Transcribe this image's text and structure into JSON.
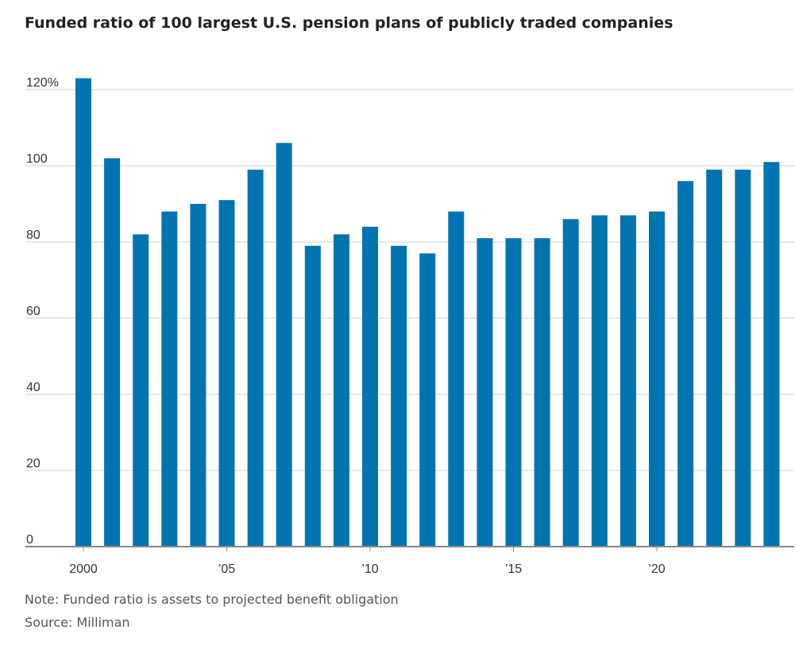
{
  "title": "Funded ratio of 100 largest U.S. pension plans of publicly traded companies",
  "note": "Note: Funded ratio is assets to projected benefit obligation",
  "source": "Source: Milliman",
  "colors": {
    "bar": "#0074B0",
    "grid": "#E8E8E8",
    "axis": "#888888"
  },
  "chart_data": {
    "type": "bar",
    "x": [
      2000,
      2001,
      2002,
      2003,
      2004,
      2005,
      2006,
      2007,
      2008,
      2009,
      2010,
      2011,
      2012,
      2013,
      2014,
      2015,
      2016,
      2017,
      2018,
      2019,
      2020,
      2021,
      2022,
      2023,
      2024
    ],
    "values": [
      123,
      102,
      82,
      88,
      90,
      91,
      99,
      106,
      79,
      82,
      84,
      79,
      77,
      88,
      81,
      81,
      81,
      86,
      87,
      87,
      88,
      96,
      99,
      99,
      101
    ],
    "ylim": [
      0,
      125
    ],
    "y_ticks": [
      {
        "value": 0,
        "label": "0"
      },
      {
        "value": 20,
        "label": "20"
      },
      {
        "value": 40,
        "label": "40"
      },
      {
        "value": 60,
        "label": "60"
      },
      {
        "value": 80,
        "label": "80"
      },
      {
        "value": 100,
        "label": "100"
      },
      {
        "value": 120,
        "label": "120%"
      }
    ],
    "x_ticks": [
      {
        "value": 2000,
        "label": "2000"
      },
      {
        "value": 2005,
        "label": "’05"
      },
      {
        "value": 2010,
        "label": "’10"
      },
      {
        "value": 2015,
        "label": "’15"
      },
      {
        "value": 2020,
        "label": "’20"
      }
    ],
    "grid": true,
    "xlabel": "",
    "ylabel": ""
  }
}
